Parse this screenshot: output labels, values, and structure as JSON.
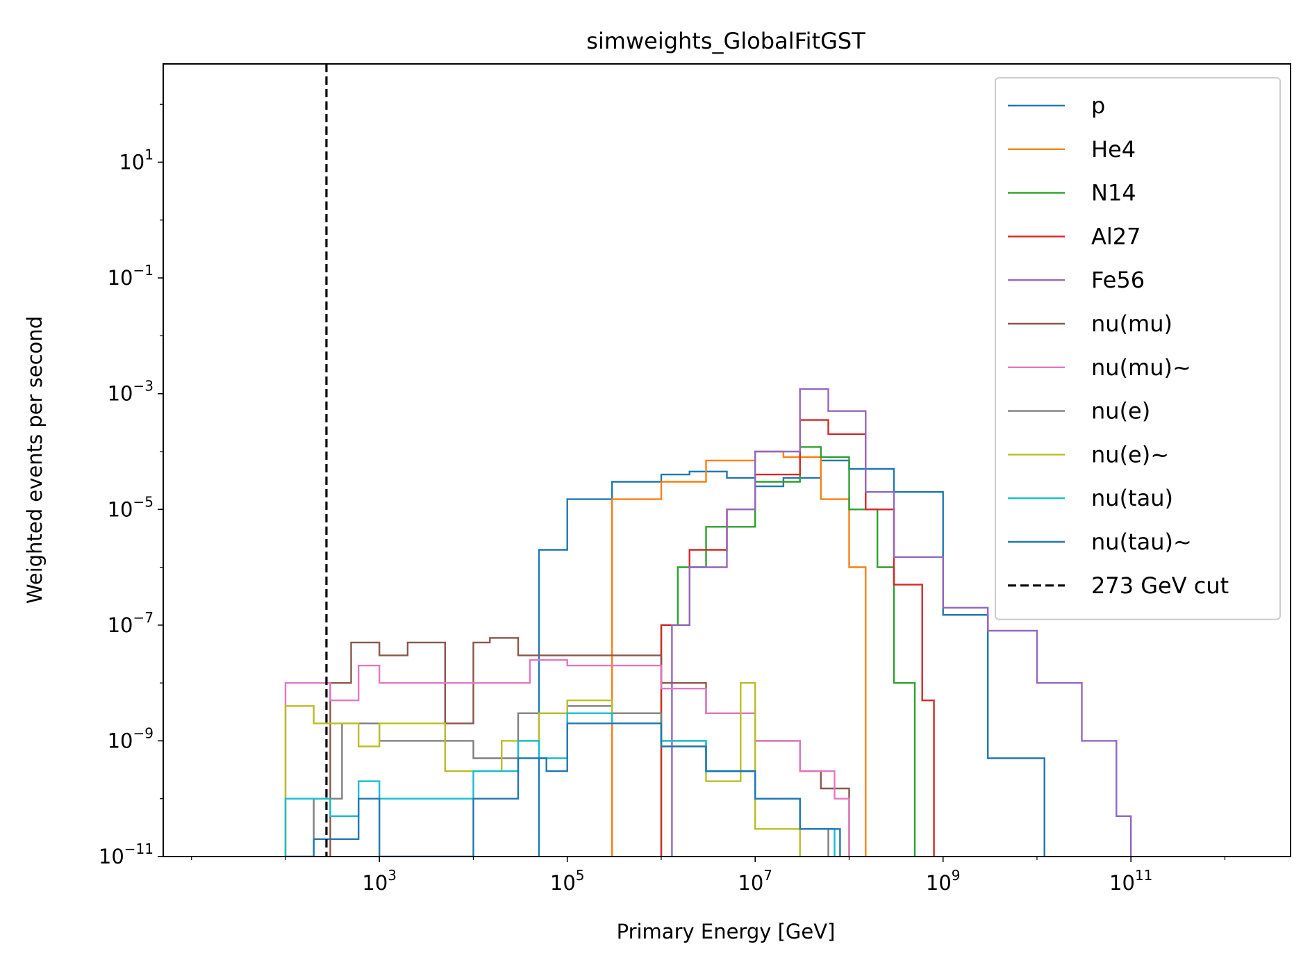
{
  "chart_data": {
    "type": "line",
    "title": "simweights_GlobalFitGST",
    "xlabel": "Primary Energy [GeV]",
    "ylabel": "Weighted events per second",
    "xscale": "log",
    "yscale": "log",
    "xlim": [
      5.0,
      5000000000000.0
    ],
    "ylim": [
      1e-11,
      500.0
    ],
    "xticks": [
      {
        "value": 1000.0,
        "base": "10",
        "exp": "3"
      },
      {
        "value": 100000.0,
        "base": "10",
        "exp": "5"
      },
      {
        "value": 10000000.0,
        "base": "10",
        "exp": "7"
      },
      {
        "value": 1000000000.0,
        "base": "10",
        "exp": "9"
      },
      {
        "value": 100000000000.0,
        "base": "10",
        "exp": "11"
      }
    ],
    "yticks": [
      {
        "value": 1e-11,
        "base": "10",
        "exp": "−11"
      },
      {
        "value": 1e-09,
        "base": "10",
        "exp": "−9"
      },
      {
        "value": 1e-07,
        "base": "10",
        "exp": "−7"
      },
      {
        "value": 1e-05,
        "base": "10",
        "exp": "−5"
      },
      {
        "value": 0.001,
        "base": "10",
        "exp": "−3"
      },
      {
        "value": 0.1,
        "base": "10",
        "exp": "−1"
      },
      {
        "value": 10.0,
        "base": "10",
        "exp": "1"
      }
    ],
    "grid": false,
    "legend_position": "upper-right",
    "cut": {
      "label": "273 GeV cut",
      "x": 273,
      "color": "#000000",
      "style": "dashed"
    },
    "series": [
      {
        "name": "p",
        "color": "#1f77b4",
        "points": [
          [
            50000.0,
            2e-06
          ],
          [
            100000.0,
            1.5e-05
          ],
          [
            300000.0,
            3e-05
          ],
          [
            1000000.0,
            4e-05
          ],
          [
            2000000.0,
            4.5e-05
          ],
          [
            5000000.0,
            3.5e-05
          ],
          [
            10000000.0,
            2.5e-05
          ],
          [
            20000000.0,
            3.5e-05
          ],
          [
            50000000.0,
            7e-05
          ],
          [
            100000000.0,
            5e-05
          ],
          [
            300000000.0,
            2e-05
          ],
          [
            1000000000.0,
            1.5e-07
          ],
          [
            3000000000.0,
            5e-10
          ],
          [
            12000000000.0,
            1e-11
          ]
        ]
      },
      {
        "name": "He4",
        "color": "#ff7f0e",
        "points": [
          [
            300000.0,
            1.5e-05
          ],
          [
            1000000.0,
            3e-05
          ],
          [
            3000000.0,
            7e-05
          ],
          [
            10000000.0,
            0.0001
          ],
          [
            20000000.0,
            8e-05
          ],
          [
            50000000.0,
            1.5e-05
          ],
          [
            100000000.0,
            1e-06
          ],
          [
            150000000.0,
            1e-08
          ],
          [
            150000000.0,
            1e-11
          ]
        ]
      },
      {
        "name": "N14",
        "color": "#2ca02c",
        "points": [
          [
            1000000.0,
            1e-07
          ],
          [
            1500000.0,
            1e-06
          ],
          [
            3000000.0,
            5e-06
          ],
          [
            10000000.0,
            3e-05
          ],
          [
            30000000.0,
            0.00012
          ],
          [
            50000000.0,
            8e-05
          ],
          [
            100000000.0,
            1e-05
          ],
          [
            200000000.0,
            1e-06
          ],
          [
            300000000.0,
            1e-08
          ],
          [
            500000000.0,
            1e-11
          ]
        ]
      },
      {
        "name": "Al27",
        "color": "#d62728",
        "points": [
          [
            1000000.0,
            1e-07
          ],
          [
            2000000.0,
            2e-06
          ],
          [
            5000000.0,
            1e-05
          ],
          [
            10000000.0,
            4e-05
          ],
          [
            30000000.0,
            0.00035
          ],
          [
            60000000.0,
            0.0002
          ],
          [
            150000000.0,
            1e-05
          ],
          [
            300000000.0,
            5e-07
          ],
          [
            600000000.0,
            5e-09
          ],
          [
            800000000.0,
            1e-11
          ]
        ]
      },
      {
        "name": "Fe56",
        "color": "#9467bd",
        "points": [
          [
            1300000.0,
            1e-11
          ],
          [
            1300000.0,
            1e-07
          ],
          [
            2000000.0,
            1e-06
          ],
          [
            5000000.0,
            1e-05
          ],
          [
            10000000.0,
            0.0001
          ],
          [
            30000000.0,
            0.0012
          ],
          [
            60000000.0,
            0.0005
          ],
          [
            150000000.0,
            2e-05
          ],
          [
            300000000.0,
            1.5e-06
          ],
          [
            1000000000.0,
            2e-07
          ],
          [
            3000000000.0,
            8e-08
          ],
          [
            10000000000.0,
            1e-08
          ],
          [
            30000000000.0,
            1e-09
          ],
          [
            70000000000.0,
            5e-11
          ],
          [
            100000000000.0,
            1e-11
          ]
        ]
      },
      {
        "name": "nu(mu)",
        "color": "#8c564b",
        "points": [
          [
            300.0,
            1e-08
          ],
          [
            500.0,
            5e-08
          ],
          [
            1000.0,
            3e-08
          ],
          [
            2000.0,
            5e-08
          ],
          [
            5000.0,
            2e-09
          ],
          [
            10000.0,
            5e-08
          ],
          [
            15000.0,
            6e-08
          ],
          [
            30000.0,
            3e-08
          ],
          [
            100000.0,
            3e-08
          ],
          [
            1000000.0,
            1e-08
          ],
          [
            3000000.0,
            3e-09
          ],
          [
            10000000.0,
            1e-09
          ],
          [
            30000000.0,
            3e-10
          ],
          [
            50000000.0,
            1.5e-10
          ],
          [
            100000000.0,
            1e-11
          ]
        ]
      },
      {
        "name": "nu(mu)~",
        "color": "#e377c2",
        "points": [
          [
            100.0,
            1e-08
          ],
          [
            300.0,
            5e-09
          ],
          [
            600.0,
            2e-08
          ],
          [
            1000.0,
            1e-08
          ],
          [
            20000.0,
            1e-08
          ],
          [
            40000.0,
            2.5e-08
          ],
          [
            100000.0,
            2e-08
          ],
          [
            1000000.0,
            8e-09
          ],
          [
            3000000.0,
            3e-09
          ],
          [
            10000000.0,
            1e-09
          ],
          [
            30000000.0,
            3e-10
          ],
          [
            70000000.0,
            1e-10
          ],
          [
            100000000.0,
            1e-11
          ]
        ]
      },
      {
        "name": "nu(e)",
        "color": "#7f7f7f",
        "points": [
          [
            200.0,
            1e-10
          ],
          [
            300.0,
            1e-10
          ],
          [
            400.0,
            2e-09
          ],
          [
            1000.0,
            1e-09
          ],
          [
            10000.0,
            5e-10
          ],
          [
            30000.0,
            3e-09
          ],
          [
            100000.0,
            4e-09
          ],
          [
            300000.0,
            3e-09
          ],
          [
            1000000.0,
            1e-09
          ],
          [
            3000000.0,
            3e-10
          ],
          [
            10000000.0,
            1e-10
          ],
          [
            30000000.0,
            3e-11
          ],
          [
            60000000.0,
            1e-11
          ]
        ]
      },
      {
        "name": "nu(e)~",
        "color": "#bcbd22",
        "points": [
          [
            100.0,
            4e-09
          ],
          [
            200.0,
            2e-09
          ],
          [
            600.0,
            8e-10
          ],
          [
            1000.0,
            2e-09
          ],
          [
            5000.0,
            3e-10
          ],
          [
            20000.0,
            1e-09
          ],
          [
            50000.0,
            3e-09
          ],
          [
            100000.0,
            5e-09
          ],
          [
            300000.0,
            2e-09
          ],
          [
            1000000.0,
            8e-10
          ],
          [
            3000000.0,
            2e-10
          ],
          [
            7000000.0,
            1e-08
          ],
          [
            10000000.0,
            3e-11
          ],
          [
            30000000.0,
            1e-11
          ]
        ]
      },
      {
        "name": "nu(tau)",
        "color": "#17becf",
        "points": [
          [
            100.0,
            1e-10
          ],
          [
            300.0,
            5e-11
          ],
          [
            600.0,
            2e-10
          ],
          [
            1000.0,
            1e-10
          ],
          [
            10000.0,
            3e-10
          ],
          [
            30000.0,
            1e-09
          ],
          [
            50000.0,
            5e-10
          ],
          [
            100000.0,
            3e-09
          ],
          [
            300000.0,
            2e-09
          ],
          [
            1000000.0,
            1e-09
          ],
          [
            3000000.0,
            3e-10
          ],
          [
            10000000.0,
            1e-10
          ],
          [
            30000000.0,
            3e-11
          ],
          [
            70000000.0,
            1e-11
          ]
        ]
      },
      {
        "name": "nu(tau)~",
        "color": "#1f77b4",
        "points": [
          [
            100.0,
            1e-11
          ],
          [
            200.0,
            2e-11
          ],
          [
            600.0,
            1e-10
          ],
          [
            1000.0,
            1e-11
          ],
          [
            10000.0,
            1e-10
          ],
          [
            30000.0,
            5e-10
          ],
          [
            60000.0,
            3e-10
          ],
          [
            100000.0,
            2e-09
          ],
          [
            300000.0,
            2e-09
          ],
          [
            1000000.0,
            8e-10
          ],
          [
            3000000.0,
            3e-10
          ],
          [
            10000000.0,
            1e-10
          ],
          [
            30000000.0,
            3e-11
          ],
          [
            80000000.0,
            1e-11
          ]
        ]
      }
    ]
  }
}
